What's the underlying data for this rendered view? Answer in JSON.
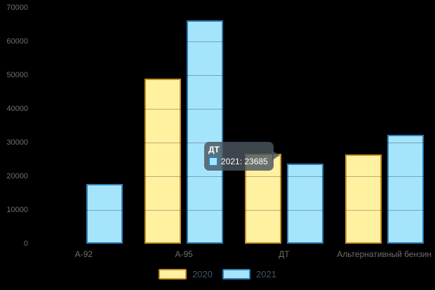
{
  "chart_data": {
    "type": "bar",
    "title": "",
    "xlabel": "",
    "ylabel": "",
    "categories": [
      "А-92",
      "А-95",
      "ДТ",
      "Альтернативный бензин"
    ],
    "series": [
      {
        "name": "2020",
        "fill": "#FFF1A0",
        "stroke": "#C9912A",
        "values": [
          null,
          48950,
          26750,
          26400
        ]
      },
      {
        "name": "2021",
        "fill": "#A5E5FB",
        "stroke": "#2E7FB5",
        "values": [
          17800,
          66150,
          23685,
          32290
        ]
      }
    ],
    "ylim": [
      0,
      70000
    ],
    "ytick_step": 10000,
    "yticks": [
      "0",
      "10000",
      "20000",
      "30000",
      "40000",
      "50000",
      "60000",
      "70000"
    ],
    "grid": "faint dark horizontal gridlines visible over bars",
    "legend_position": "bottom"
  },
  "tooltip": {
    "title": "ДТ",
    "value_label": "2021: 23685",
    "marker_fill": "#A5E5FB",
    "marker_stroke": "#2E7FB5"
  },
  "colors": {
    "background": "#000000",
    "axis_label": "#6F6F6F",
    "legend_label": "#44546A",
    "tooltip_bg": "rgba(74,84,94,0.82)",
    "tooltip_text": "#FFFFFF"
  }
}
